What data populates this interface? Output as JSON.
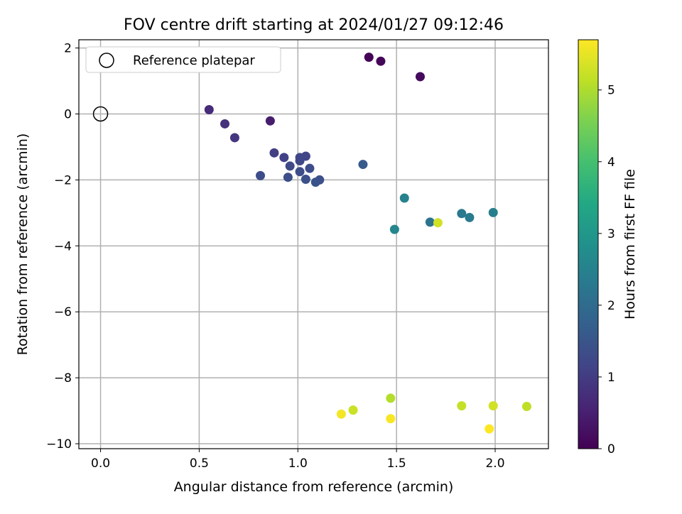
{
  "chart_data": {
    "type": "scatter",
    "title": "FOV centre drift starting at 2024/01/27 09:12:46",
    "xlabel": "Angular distance from reference (arcmin)",
    "ylabel": "Rotation from reference (arcmin)",
    "xlim": [
      -0.11,
      2.27
    ],
    "ylim": [
      -10.15,
      2.25
    ],
    "xticks": [
      {
        "value": 0.0,
        "label": "0.0"
      },
      {
        "value": 0.5,
        "label": "0.5"
      },
      {
        "value": 1.0,
        "label": "1.0"
      },
      {
        "value": 1.5,
        "label": "1.5"
      },
      {
        "value": 2.0,
        "label": "2.0"
      }
    ],
    "yticks": [
      {
        "value": 2,
        "label": "2"
      },
      {
        "value": 0,
        "label": "0"
      },
      {
        "value": -2,
        "label": "−2"
      },
      {
        "value": -4,
        "label": "−4"
      },
      {
        "value": -6,
        "label": "−6"
      },
      {
        "value": -8,
        "label": "−8"
      },
      {
        "value": -10,
        "label": "−10"
      }
    ],
    "grid": true,
    "legend": {
      "position": "top-left",
      "entries": [
        "Reference platepar"
      ]
    },
    "reference_point": {
      "x": 0.0,
      "y": 0.0
    },
    "colorbar": {
      "label": "Hours from first FF file",
      "colormap": "viridis",
      "range": [
        0,
        5.7
      ],
      "ticks": [
        {
          "value": 0,
          "label": "0"
        },
        {
          "value": 1,
          "label": "1"
        },
        {
          "value": 2,
          "label": "2"
        },
        {
          "value": 3,
          "label": "3"
        },
        {
          "value": 4,
          "label": "4"
        },
        {
          "value": 5,
          "label": "5"
        }
      ]
    },
    "points": [
      {
        "x": 1.36,
        "y": 1.72,
        "hours": 0.05
      },
      {
        "x": 1.42,
        "y": 1.6,
        "hours": 0.1
      },
      {
        "x": 1.62,
        "y": 1.13,
        "hours": 0.15
      },
      {
        "x": 0.86,
        "y": -0.21,
        "hours": 0.45
      },
      {
        "x": 0.55,
        "y": 0.13,
        "hours": 0.7
      },
      {
        "x": 0.63,
        "y": -0.3,
        "hours": 0.8
      },
      {
        "x": 0.68,
        "y": -0.72,
        "hours": 0.9
      },
      {
        "x": 0.88,
        "y": -1.18,
        "hours": 1.05
      },
      {
        "x": 0.93,
        "y": -1.32,
        "hours": 1.1
      },
      {
        "x": 1.04,
        "y": -1.28,
        "hours": 1.15
      },
      {
        "x": 1.01,
        "y": -1.32,
        "hours": 1.2
      },
      {
        "x": 1.01,
        "y": -1.42,
        "hours": 1.2
      },
      {
        "x": 0.96,
        "y": -1.58,
        "hours": 1.25
      },
      {
        "x": 1.06,
        "y": -1.65,
        "hours": 1.3
      },
      {
        "x": 1.01,
        "y": -1.75,
        "hours": 1.3
      },
      {
        "x": 0.81,
        "y": -1.87,
        "hours": 1.3
      },
      {
        "x": 0.95,
        "y": -1.92,
        "hours": 1.35
      },
      {
        "x": 1.04,
        "y": -1.98,
        "hours": 1.4
      },
      {
        "x": 1.11,
        "y": -2.0,
        "hours": 1.4
      },
      {
        "x": 1.09,
        "y": -2.07,
        "hours": 1.45
      },
      {
        "x": 1.33,
        "y": -1.53,
        "hours": 1.6
      },
      {
        "x": 1.67,
        "y": -3.28,
        "hours": 2.2
      },
      {
        "x": 1.83,
        "y": -3.02,
        "hours": 2.3
      },
      {
        "x": 1.87,
        "y": -3.14,
        "hours": 2.35
      },
      {
        "x": 1.99,
        "y": -2.99,
        "hours": 2.45
      },
      {
        "x": 1.54,
        "y": -2.55,
        "hours": 2.5
      },
      {
        "x": 1.49,
        "y": -3.5,
        "hours": 2.6
      },
      {
        "x": 1.71,
        "y": -3.3,
        "hours": 5.3
      },
      {
        "x": 1.47,
        "y": -8.62,
        "hours": 5.05
      },
      {
        "x": 1.28,
        "y": -8.98,
        "hours": 5.25
      },
      {
        "x": 1.22,
        "y": -9.1,
        "hours": 5.6
      },
      {
        "x": 1.47,
        "y": -9.24,
        "hours": 5.65
      },
      {
        "x": 1.83,
        "y": -8.85,
        "hours": 5.2
      },
      {
        "x": 1.99,
        "y": -8.85,
        "hours": 5.3
      },
      {
        "x": 2.16,
        "y": -8.87,
        "hours": 5.15
      },
      {
        "x": 1.97,
        "y": -9.55,
        "hours": 5.7
      }
    ]
  }
}
